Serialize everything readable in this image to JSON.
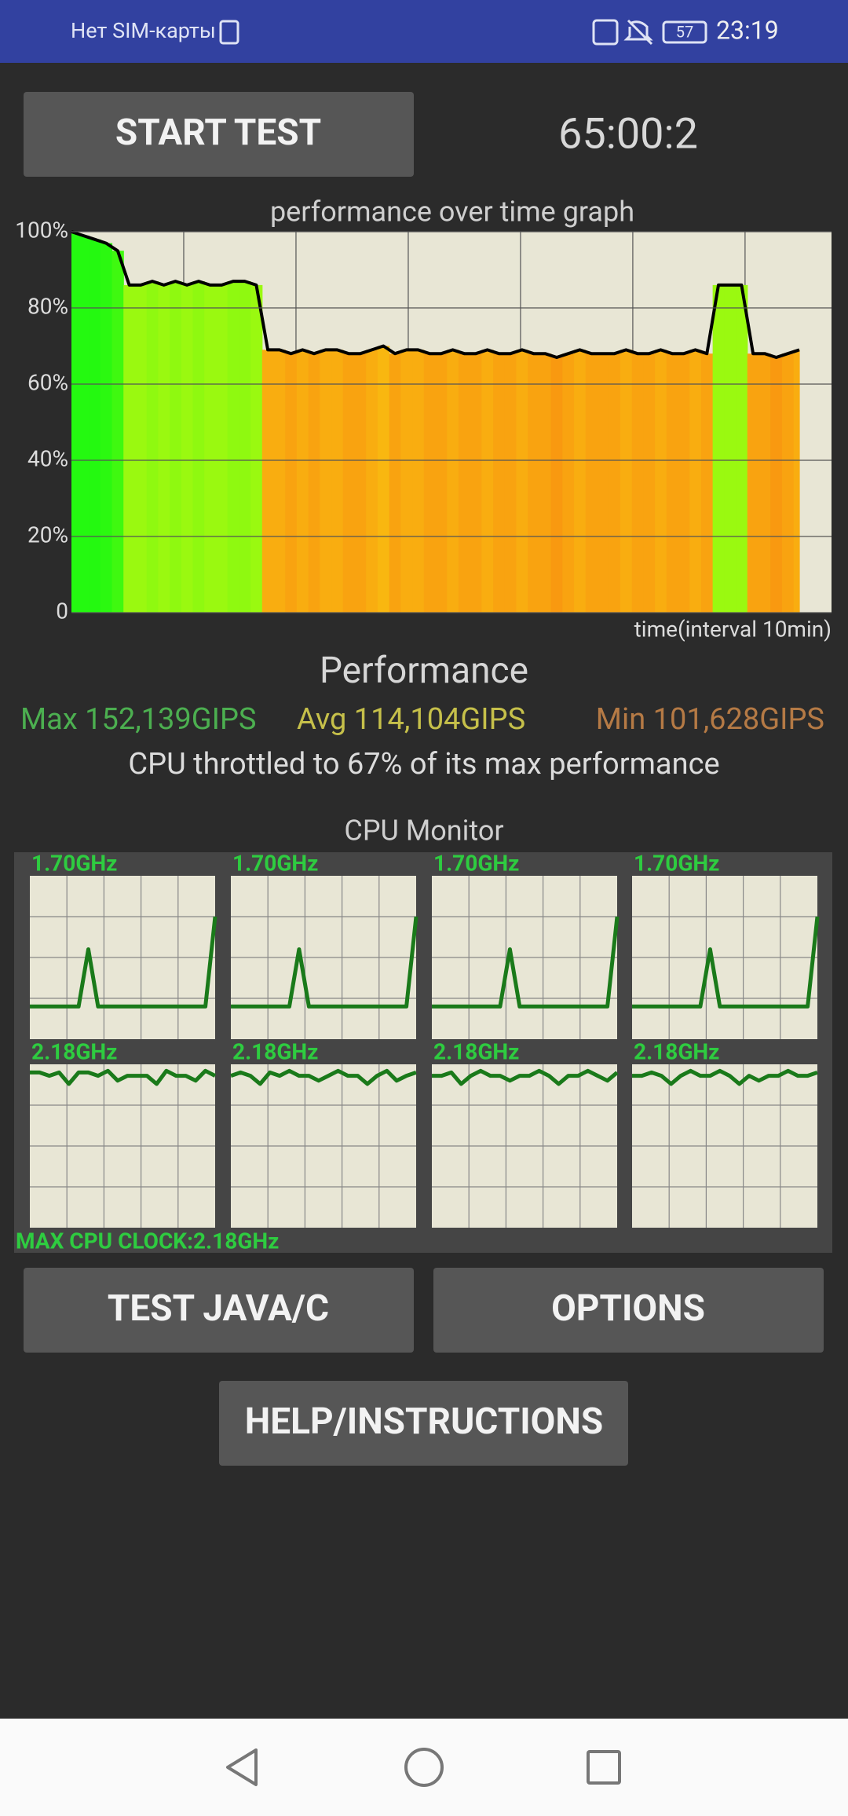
{
  "status_bar": {
    "carrier": "Нет SIM-карты",
    "battery": "57",
    "time": "23:19"
  },
  "buttons": {
    "start": "START TEST",
    "test_java": "TEST JAVA/C",
    "options": "OPTIONS",
    "help": "HELP/INSTRUCTIONS"
  },
  "timer": "65:00:2",
  "chart_data": {
    "type": "line",
    "title": "performance over time graph",
    "x_label": "time(interval 10min)",
    "categories": [
      null,
      null,
      null,
      null,
      null,
      null,
      null,
      null,
      null,
      null,
      null,
      null,
      null,
      null,
      null,
      null,
      null,
      null,
      null,
      null,
      null,
      null,
      null,
      null,
      null,
      null,
      null,
      null,
      null,
      null,
      null,
      null,
      null,
      null,
      null,
      null,
      null,
      null,
      null,
      null,
      null,
      null,
      null,
      null,
      null,
      null,
      null,
      null,
      null,
      null,
      null,
      null,
      null,
      null,
      null,
      null,
      null,
      null,
      null,
      null,
      null,
      null,
      null,
      null
    ],
    "values": [
      100,
      99,
      98,
      97,
      95,
      86,
      86,
      87,
      86,
      87,
      86,
      87,
      86,
      86,
      87,
      87,
      86,
      69,
      69,
      68,
      69,
      68,
      69,
      69,
      68,
      68,
      69,
      70,
      68,
      69,
      69,
      68,
      68,
      69,
      68,
      68,
      69,
      68,
      68,
      69,
      68,
      68,
      67,
      68,
      69,
      68,
      68,
      68,
      69,
      68,
      68,
      69,
      68,
      68,
      69,
      68,
      86,
      86,
      86,
      68,
      68,
      67,
      68,
      69
    ],
    "fill": true,
    "line_color": "#000000",
    "ylim": [
      0,
      100
    ],
    "yticks": [
      0,
      {
        "value": 20,
        "label": "20%"
      },
      {
        "value": 40,
        "label": "40%"
      },
      {
        "value": 60,
        "label": "60%"
      },
      {
        "value": 80,
        "label": "80%"
      },
      {
        "value": 100,
        "label": "100%"
      }
    ],
    "grid": true
  },
  "performance": {
    "title": "Performance",
    "max": "Max 152,139GIPS",
    "avg": "Avg 114,104GIPS",
    "min": "Min 101,628GIPS",
    "summary": "CPU throttled to 67% of its max performance"
  },
  "cpu_monitor": {
    "title": "CPU Monitor",
    "max_clock": "MAX CPU CLOCK:2.18GHz",
    "cores": [
      {
        "label": "1.70GHz",
        "values": [
          20,
          20,
          20,
          20,
          20,
          20,
          55,
          20,
          20,
          20,
          20,
          20,
          20,
          20,
          20,
          20,
          20,
          20,
          20,
          75
        ]
      },
      {
        "label": "1.70GHz",
        "values": [
          20,
          20,
          20,
          20,
          20,
          20,
          20,
          55,
          20,
          20,
          20,
          20,
          20,
          20,
          20,
          20,
          20,
          20,
          20,
          75
        ]
      },
      {
        "label": "1.70GHz",
        "values": [
          20,
          20,
          20,
          20,
          20,
          20,
          20,
          20,
          55,
          20,
          20,
          20,
          20,
          20,
          20,
          20,
          20,
          20,
          20,
          75
        ]
      },
      {
        "label": "1.70GHz",
        "values": [
          20,
          20,
          20,
          20,
          20,
          20,
          20,
          20,
          55,
          20,
          20,
          20,
          20,
          20,
          20,
          20,
          20,
          20,
          20,
          75
        ]
      },
      {
        "label": "2.18GHz",
        "values": [
          95,
          95,
          93,
          95,
          88,
          95,
          95,
          93,
          96,
          90,
          93,
          93,
          93,
          88,
          96,
          93,
          93,
          90,
          96,
          93
        ]
      },
      {
        "label": "2.18GHz",
        "values": [
          93,
          95,
          93,
          88,
          95,
          93,
          96,
          93,
          93,
          90,
          93,
          96,
          93,
          93,
          88,
          93,
          96,
          90,
          93,
          95
        ]
      },
      {
        "label": "2.18GHz",
        "values": [
          93,
          93,
          95,
          88,
          93,
          96,
          93,
          93,
          90,
          93,
          93,
          96,
          93,
          88,
          93,
          93,
          96,
          93,
          90,
          95
        ]
      },
      {
        "label": "2.18GHz",
        "values": [
          93,
          93,
          95,
          93,
          88,
          93,
          96,
          93,
          93,
          96,
          93,
          88,
          93,
          90,
          93,
          93,
          96,
          93,
          93,
          95
        ]
      }
    ]
  }
}
